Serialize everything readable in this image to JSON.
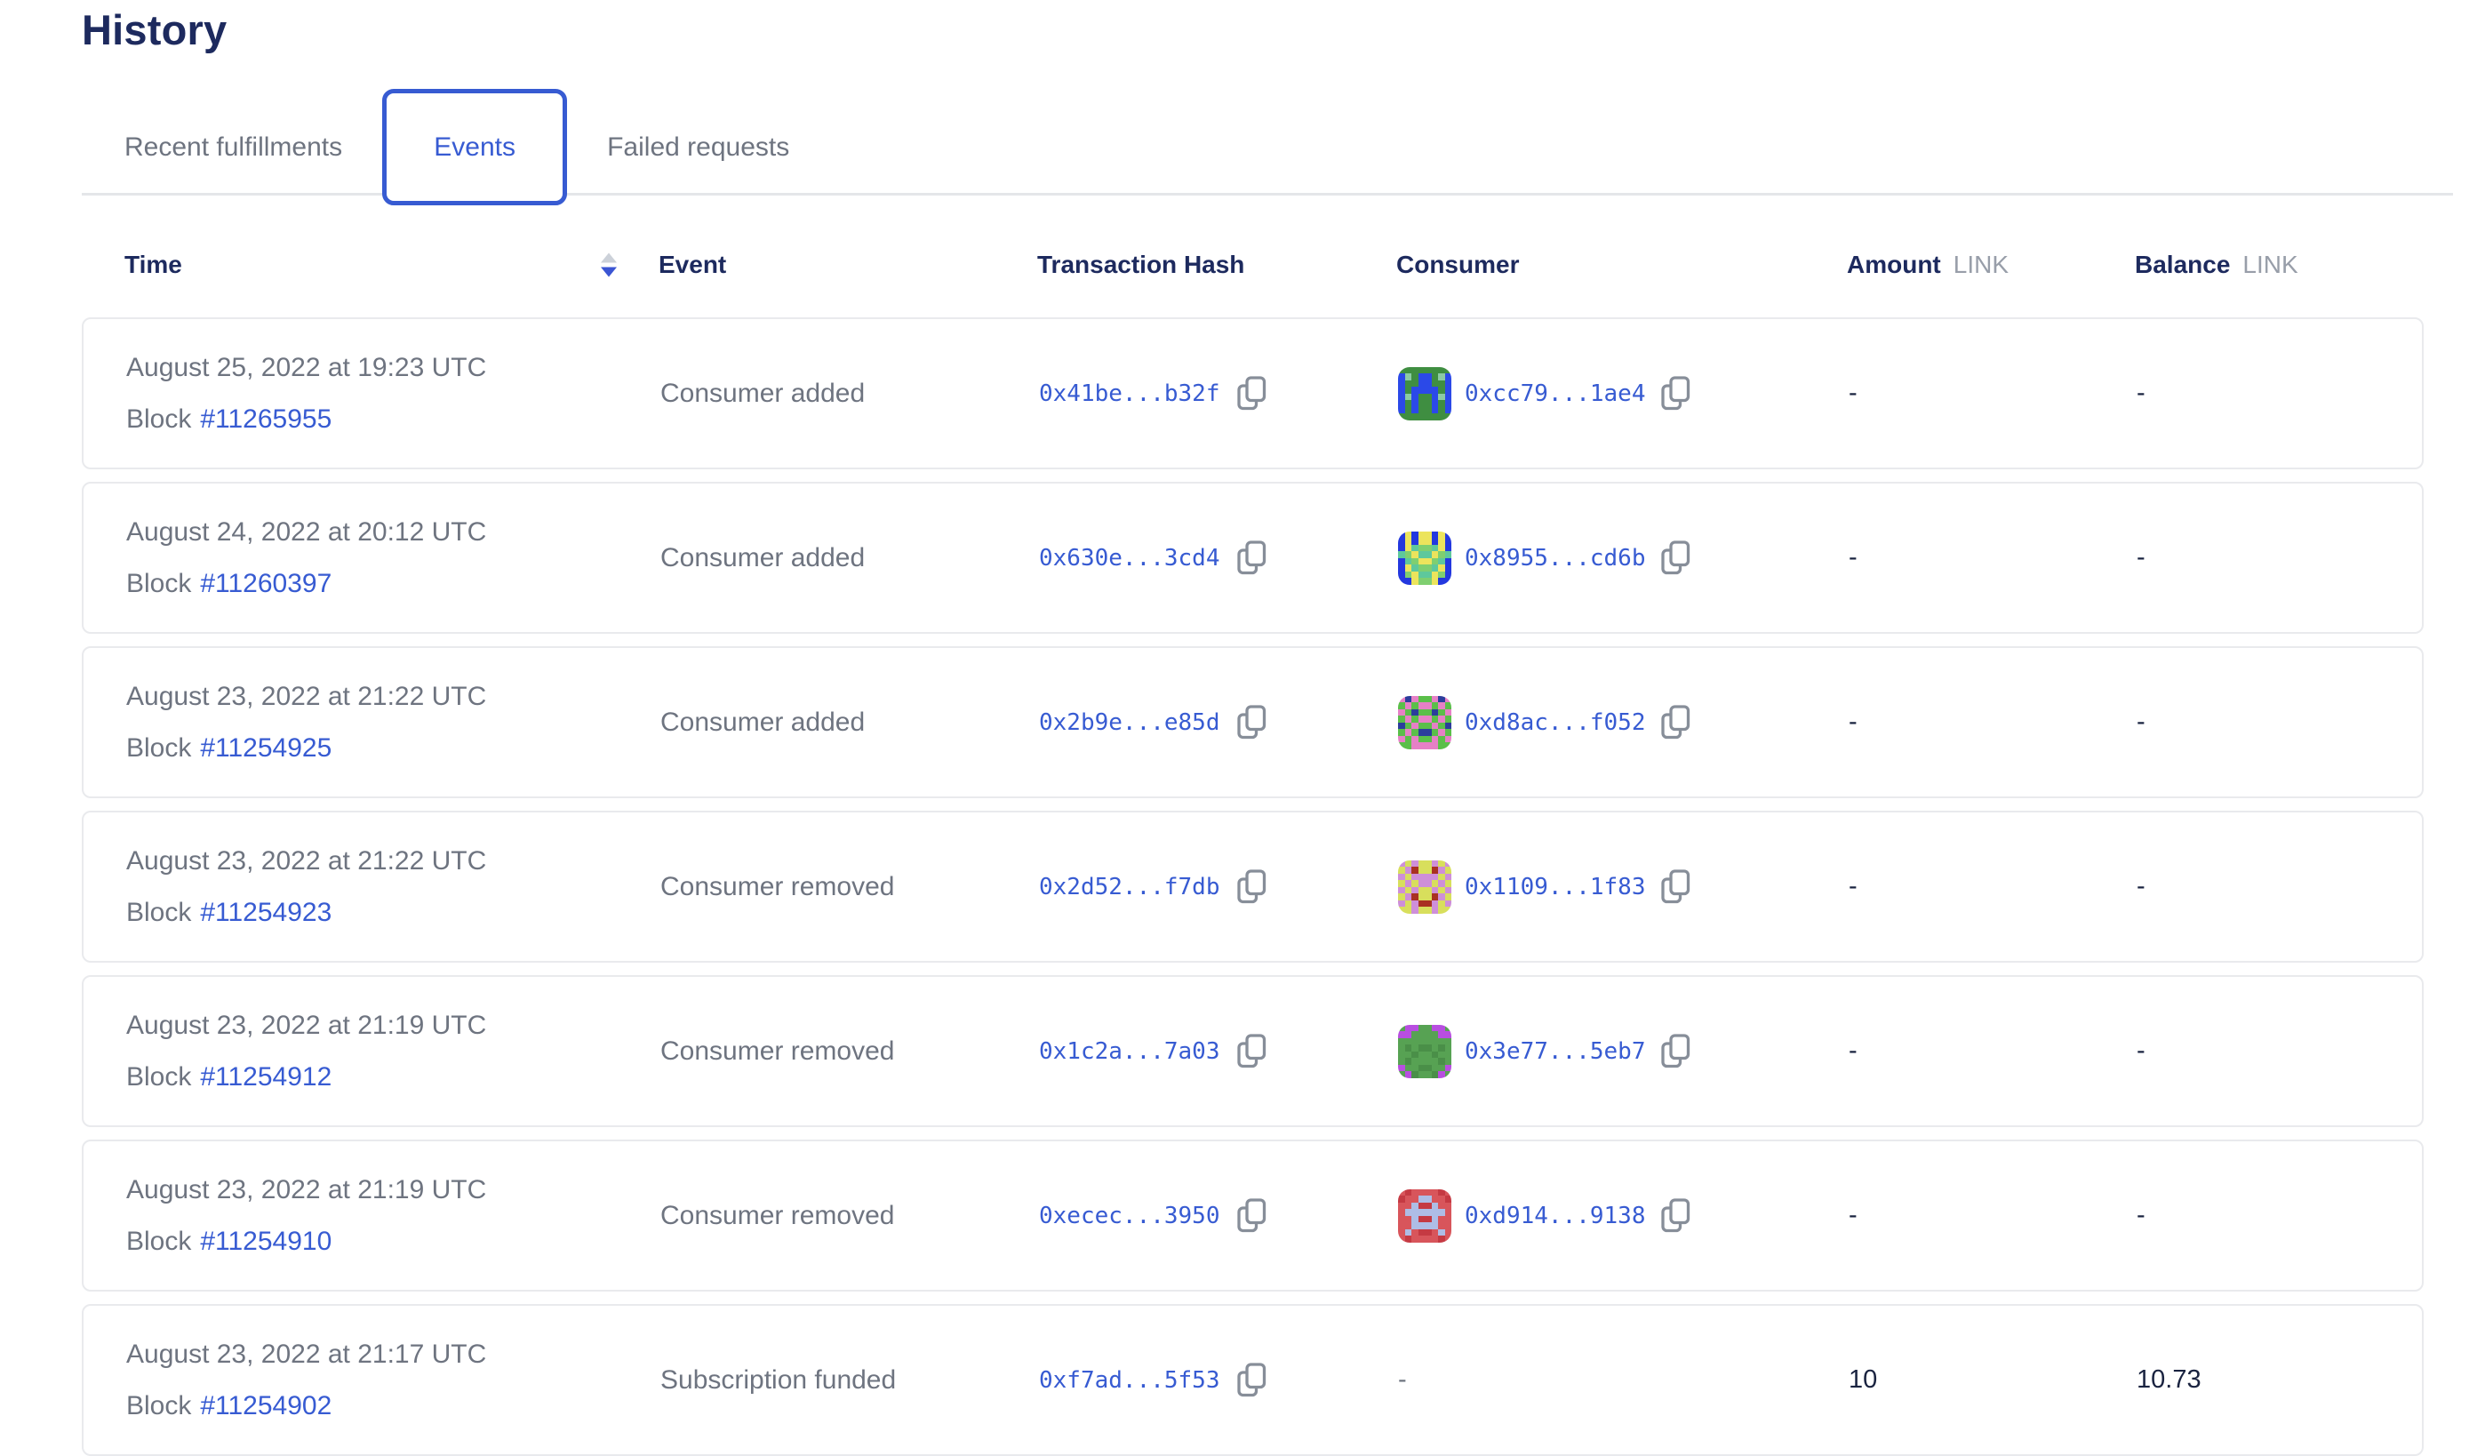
{
  "page": {
    "title": "History"
  },
  "tabs": [
    {
      "label": "Recent fulfillments",
      "active": false
    },
    {
      "label": "Events",
      "active": true
    },
    {
      "label": "Failed requests",
      "active": false
    }
  ],
  "table": {
    "columns": {
      "time": "Time",
      "event": "Event",
      "tx_hash": "Transaction Hash",
      "consumer": "Consumer",
      "amount": "Amount",
      "balance": "Balance",
      "unit": "LINK"
    },
    "sort": {
      "column": "Time",
      "direction": "desc"
    },
    "rows": [
      {
        "time": {
          "date": "August 25, 2022 at 19:23 UTC",
          "block_label": "Block",
          "block_number": "#11265955"
        },
        "event": "Consumer added",
        "tx_hash": "0x41be...b32f",
        "consumer": {
          "address": "0xcc79...1ae4",
          "avatar": {
            "palette": {
              "G": "#3f8e41",
              "B": "#2b49e8",
              "M": "#8ccaa4"
            },
            "grid": [
              "GGGGGGGG",
              "BMGBBGMB",
              "BGGBBGGB",
              "BGBBBBGB",
              "BMBGGBMB",
              "BGBGGBGB",
              "BGBGGBGB",
              "GGGGGGGG"
            ]
          }
        },
        "amount": "-",
        "balance": "-"
      },
      {
        "time": {
          "date": "August 24, 2022 at 20:12 UTC",
          "block_label": "Block",
          "block_number": "#11260397"
        },
        "event": "Consumer added",
        "tx_hash": "0x630e...3cd4",
        "consumer": {
          "address": "0x8955...cd6b",
          "avatar": {
            "palette": {
              "B": "#2338df",
              "Y": "#ece45c",
              "T": "#5ec89c",
              "G": "#7fcf70"
            },
            "grid": [
              "BYBYYBYB",
              "BYBYYBYB",
              "BYTGGTYB",
              "TGYTTYGT",
              "BTGYYGTB",
              "BYTGGTYB",
              "BGYTTYGB",
              "BBYGGYBB"
            ]
          }
        },
        "amount": "-",
        "balance": "-"
      },
      {
        "time": {
          "date": "August 23, 2022 at 21:22 UTC",
          "block_label": "Block",
          "block_number": "#11254925"
        },
        "event": "Consumer added",
        "tx_hash": "0x2b9e...e85d",
        "consumer": {
          "address": "0xd8ac...f052",
          "avatar": {
            "palette": {
              "G": "#5abf49",
              "P": "#e680c6",
              "N": "#2c3d9c"
            },
            "grid": [
              "PNPGGPNP",
              "GPGPPGPG",
              "PGNGGNGP",
              "GPGPPGPG",
              "NGPGGPGN",
              "GPGNNGPG",
              "PGPGGPGP",
              "GGPPPPGG"
            ]
          }
        },
        "amount": "-",
        "balance": "-"
      },
      {
        "time": {
          "date": "August 23, 2022 at 21:22 UTC",
          "block_label": "Block",
          "block_number": "#11254923"
        },
        "event": "Consumer removed",
        "tx_hash": "0x2d52...f7db",
        "consumer": {
          "address": "0x1109...1f83",
          "avatar": {
            "palette": {
              "Y": "#d8df5c",
              "O": "#ce8fd9",
              "R": "#a93122"
            },
            "grid": [
              "OYOYYOYO",
              "YORYYROY",
              "OYOOOOYO",
              "YOYOOYOY",
              "OYOYYOYO",
              "YORYYROY",
              "OYORROYO",
              "YYOYYOYY"
            ]
          }
        },
        "amount": "-",
        "balance": "-"
      },
      {
        "time": {
          "date": "August 23, 2022 at 21:19 UTC",
          "block_label": "Block",
          "block_number": "#11254912"
        },
        "event": "Consumer removed",
        "tx_hash": "0x1c2a...7a03",
        "consumer": {
          "address": "0x3e77...5eb7",
          "avatar": {
            "palette": {
              "G": "#57a253",
              "D": "#4a8f48",
              "P": "#b84ee0"
            },
            "grid": [
              "GPPGGPPG",
              "PPGGGGPP",
              "GGGGGGGG",
              "GDGDDGDG",
              "GGDGGDGG",
              "GDGGGGDG",
              "PGGDDGGP",
              "GPDGGDPG"
            ]
          }
        },
        "amount": "-",
        "balance": "-"
      },
      {
        "time": {
          "date": "August 23, 2022 at 21:19 UTC",
          "block_label": "Block",
          "block_number": "#11254910"
        },
        "event": "Consumer removed",
        "tx_hash": "0xecec...3950",
        "consumer": {
          "address": "0xd914...9138",
          "avatar": {
            "palette": {
              "R": "#d8555b",
              "D": "#c53a43",
              "L": "#aebde6"
            },
            "grid": [
              "RDRRRRDR",
              "DRRLLRRD",
              "RRLDDLRR",
              "RLLLLLLR",
              "RRLDDLRR",
              "RRLLLLRR",
              "RLRDDRLR",
              "RDRRRRDR"
            ]
          }
        },
        "amount": "-",
        "balance": "-"
      },
      {
        "time": {
          "date": "August 23, 2022 at 21:17 UTC",
          "block_label": "Block",
          "block_number": "#11254902"
        },
        "event": "Subscription funded",
        "tx_hash": "0xf7ad...5f53",
        "consumer": {
          "address": "-",
          "avatar": null
        },
        "amount": "10",
        "balance": "10.73"
      }
    ]
  },
  "colors": {
    "accent_blue": "#375BD2",
    "heading_navy": "#1D2A5E",
    "body_gray": "#6E7480"
  }
}
